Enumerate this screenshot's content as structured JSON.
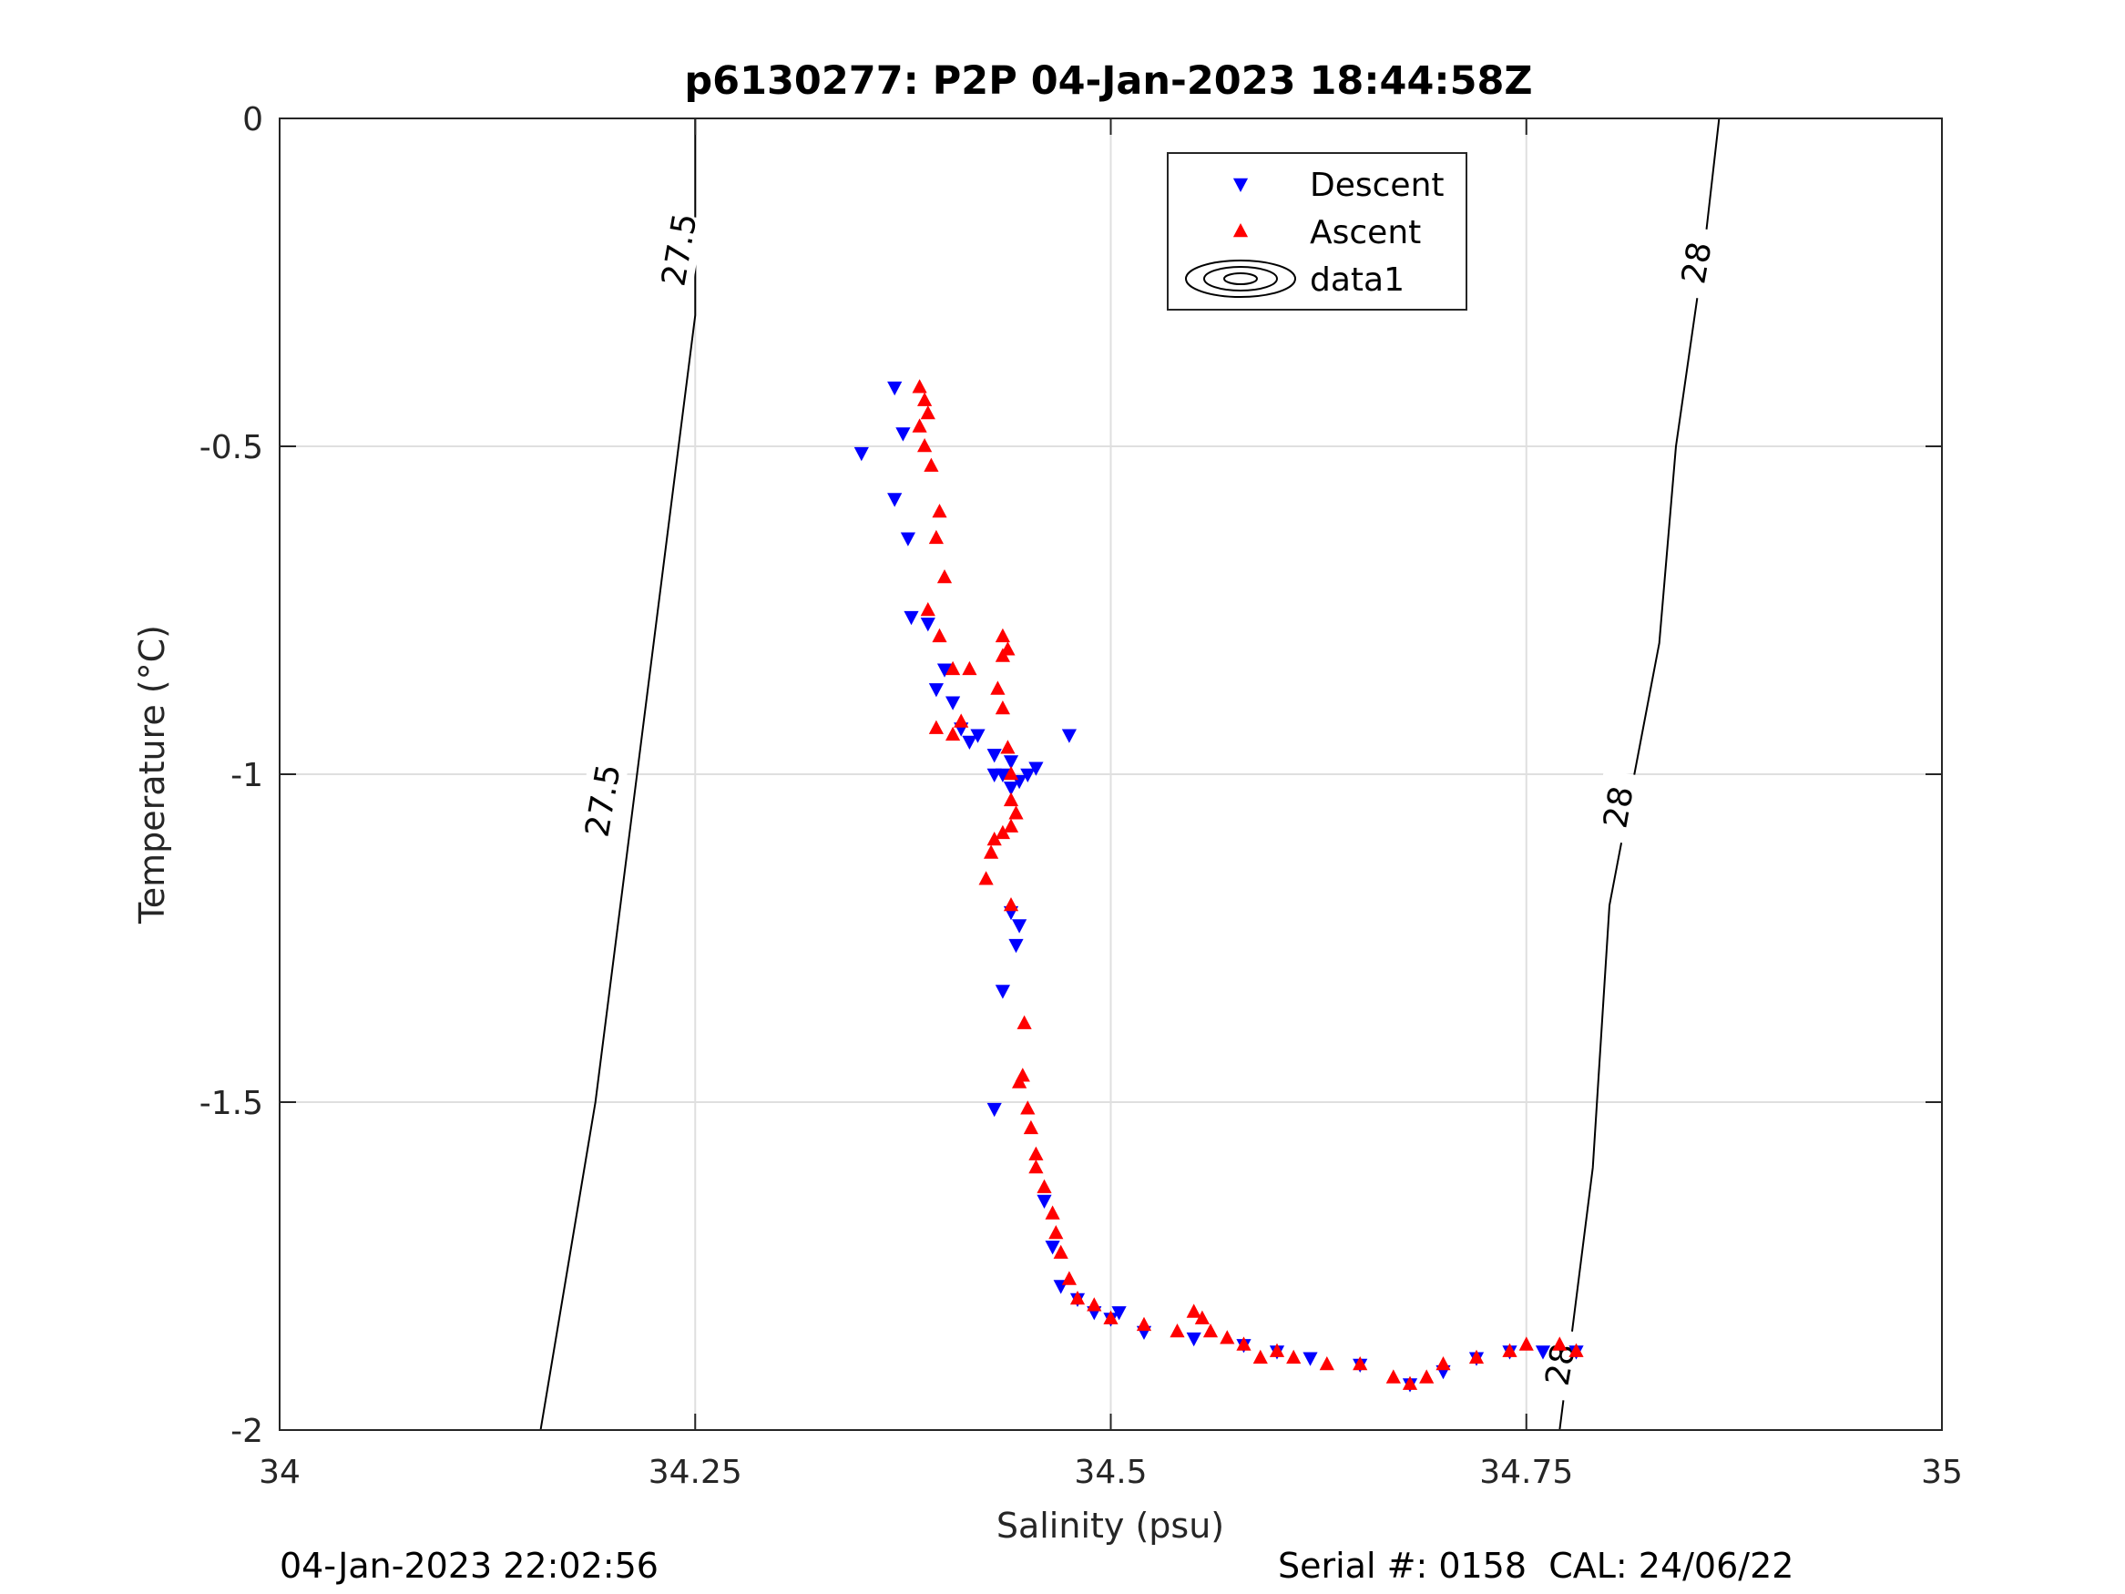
{
  "chart_data": {
    "type": "scatter",
    "title": "p6130277: P2P 04-Jan-2023 18:44:58Z",
    "xlabel": "Salinity (psu)",
    "ylabel": "Temperature (°C)",
    "xlim": [
      34,
      35
    ],
    "ylim": [
      -2,
      0
    ],
    "xticks": [
      34,
      34.25,
      34.5,
      34.75,
      35
    ],
    "xtick_labels": [
      "34",
      "34.25",
      "34.5",
      "34.75",
      "35"
    ],
    "yticks": [
      0,
      -0.5,
      -1,
      -1.5,
      -2
    ],
    "ytick_labels": [
      "0",
      "-0.5",
      "-1",
      "-1.5",
      "-2"
    ],
    "grid": true,
    "legend_position": "top-center",
    "legend": [
      {
        "label": "Descent",
        "marker": "triangle-down",
        "color": "#0000ff"
      },
      {
        "label": "Ascent",
        "marker": "triangle-up",
        "color": "#ff0000"
      },
      {
        "label": "data1",
        "marker": "contour-ellipses",
        "color": "#000000"
      }
    ],
    "contours": [
      {
        "label": "27.5",
        "points": [
          [
            34.157,
            -2.0
          ],
          [
            34.19,
            -1.5
          ],
          [
            34.215,
            -1.0
          ],
          [
            34.24,
            -0.5
          ],
          [
            34.25,
            -0.3
          ],
          [
            34.25,
            0.0
          ]
        ]
      },
      {
        "label": "28",
        "points": [
          [
            34.77,
            -2.0
          ],
          [
            34.79,
            -1.6
          ],
          [
            34.8,
            -1.2
          ],
          [
            34.83,
            -0.8
          ],
          [
            34.84,
            -0.5
          ],
          [
            34.857,
            -0.2
          ],
          [
            34.866,
            0.0
          ]
        ]
      }
    ],
    "contour_label_positions": [
      {
        "label": "27.5",
        "x": 34.24,
        "y": -0.2,
        "angle": -80
      },
      {
        "label": "27.5",
        "x": 34.194,
        "y": -1.04,
        "angle": -80
      },
      {
        "label": "28",
        "x": 34.852,
        "y": -0.22,
        "angle": -80
      },
      {
        "label": "28",
        "x": 34.805,
        "y": -1.05,
        "angle": -80
      },
      {
        "label": "28",
        "x": 34.77,
        "y": -1.9,
        "angle": -80
      }
    ],
    "series": [
      {
        "name": "Descent",
        "color": "#0000ff",
        "marker": "triangle-down",
        "points": [
          [
            34.35,
            -0.51
          ],
          [
            34.37,
            -0.41
          ],
          [
            34.375,
            -0.48
          ],
          [
            34.378,
            -0.64
          ],
          [
            34.37,
            -0.58
          ],
          [
            34.38,
            -0.76
          ],
          [
            34.39,
            -0.77
          ],
          [
            34.395,
            -0.87
          ],
          [
            34.4,
            -0.84
          ],
          [
            34.405,
            -0.89
          ],
          [
            34.41,
            -0.93
          ],
          [
            34.415,
            -0.95
          ],
          [
            34.42,
            -0.94
          ],
          [
            34.43,
            -0.97
          ],
          [
            34.435,
            -1.0
          ],
          [
            34.44,
            -1.02
          ],
          [
            34.445,
            -1.01
          ],
          [
            34.45,
            -1.0
          ],
          [
            34.455,
            -0.99
          ],
          [
            34.475,
            -0.94
          ],
          [
            34.44,
            -0.98
          ],
          [
            34.43,
            -1.0
          ],
          [
            34.44,
            -1.21
          ],
          [
            34.445,
            -1.23
          ],
          [
            34.443,
            -1.26
          ],
          [
            34.435,
            -1.33
          ],
          [
            34.43,
            -1.51
          ],
          [
            34.46,
            -1.65
          ],
          [
            34.465,
            -1.72
          ],
          [
            34.47,
            -1.78
          ],
          [
            34.48,
            -1.8
          ],
          [
            34.49,
            -1.82
          ],
          [
            34.5,
            -1.83
          ],
          [
            34.505,
            -1.82
          ],
          [
            34.52,
            -1.85
          ],
          [
            34.55,
            -1.86
          ],
          [
            34.58,
            -1.87
          ],
          [
            34.6,
            -1.88
          ],
          [
            34.62,
            -1.89
          ],
          [
            34.65,
            -1.9
          ],
          [
            34.68,
            -1.93
          ],
          [
            34.7,
            -1.91
          ],
          [
            34.72,
            -1.89
          ],
          [
            34.74,
            -1.88
          ],
          [
            34.76,
            -1.88
          ],
          [
            34.78,
            -1.88
          ]
        ]
      },
      {
        "name": "Ascent",
        "color": "#ff0000",
        "marker": "triangle-up",
        "points": [
          [
            34.385,
            -0.41
          ],
          [
            34.388,
            -0.43
          ],
          [
            34.39,
            -0.45
          ],
          [
            34.385,
            -0.47
          ],
          [
            34.388,
            -0.5
          ],
          [
            34.392,
            -0.53
          ],
          [
            34.397,
            -0.6
          ],
          [
            34.395,
            -0.64
          ],
          [
            34.39,
            -0.75
          ],
          [
            34.4,
            -0.7
          ],
          [
            34.397,
            -0.79
          ],
          [
            34.405,
            -0.84
          ],
          [
            34.415,
            -0.84
          ],
          [
            34.41,
            -0.92
          ],
          [
            34.405,
            -0.94
          ],
          [
            34.395,
            -0.93
          ],
          [
            34.435,
            -0.79
          ],
          [
            34.435,
            -0.82
          ],
          [
            34.438,
            -0.81
          ],
          [
            34.432,
            -0.87
          ],
          [
            34.435,
            -0.9
          ],
          [
            34.438,
            -0.96
          ],
          [
            34.44,
            -1.0
          ],
          [
            34.44,
            -1.04
          ],
          [
            34.443,
            -1.06
          ],
          [
            34.44,
            -1.08
          ],
          [
            34.435,
            -1.09
          ],
          [
            34.43,
            -1.1
          ],
          [
            34.428,
            -1.12
          ],
          [
            34.425,
            -1.16
          ],
          [
            34.44,
            -1.2
          ],
          [
            34.448,
            -1.38
          ],
          [
            34.447,
            -1.46
          ],
          [
            34.445,
            -1.47
          ],
          [
            34.45,
            -1.51
          ],
          [
            34.452,
            -1.54
          ],
          [
            34.455,
            -1.58
          ],
          [
            34.455,
            -1.6
          ],
          [
            34.46,
            -1.63
          ],
          [
            34.465,
            -1.67
          ],
          [
            34.467,
            -1.7
          ],
          [
            34.47,
            -1.73
          ],
          [
            34.475,
            -1.77
          ],
          [
            34.48,
            -1.8
          ],
          [
            34.49,
            -1.81
          ],
          [
            34.5,
            -1.83
          ],
          [
            34.52,
            -1.84
          ],
          [
            34.54,
            -1.85
          ],
          [
            34.55,
            -1.82
          ],
          [
            34.555,
            -1.83
          ],
          [
            34.56,
            -1.85
          ],
          [
            34.57,
            -1.86
          ],
          [
            34.58,
            -1.87
          ],
          [
            34.59,
            -1.89
          ],
          [
            34.6,
            -1.88
          ],
          [
            34.61,
            -1.89
          ],
          [
            34.63,
            -1.9
          ],
          [
            34.65,
            -1.9
          ],
          [
            34.67,
            -1.92
          ],
          [
            34.68,
            -1.93
          ],
          [
            34.69,
            -1.92
          ],
          [
            34.7,
            -1.9
          ],
          [
            34.72,
            -1.89
          ],
          [
            34.74,
            -1.88
          ],
          [
            34.75,
            -1.87
          ],
          [
            34.77,
            -1.87
          ],
          [
            34.78,
            -1.88
          ]
        ]
      }
    ]
  },
  "footer": {
    "left": "04-Jan-2023 22:02:56",
    "right": "Serial #: 0158  CAL: 24/06/22"
  }
}
